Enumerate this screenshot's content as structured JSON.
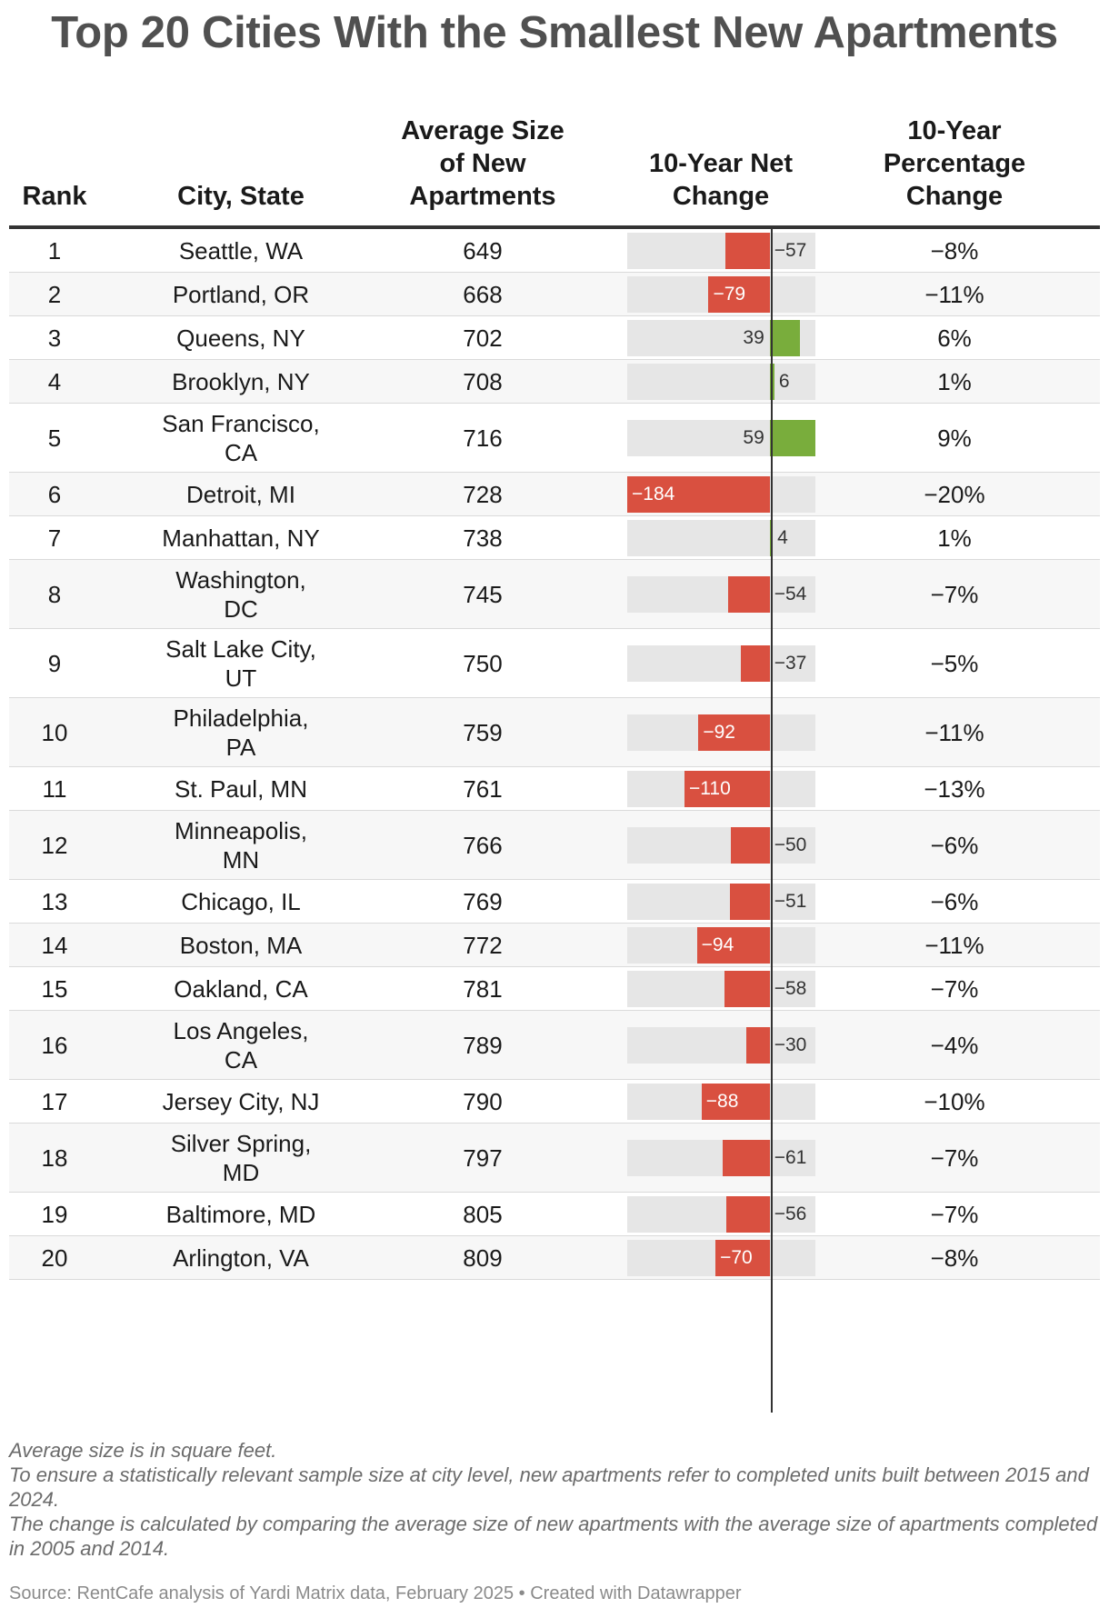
{
  "title": "Top 20 Cities With the Smallest New Apartments",
  "headers": {
    "rank": "Rank",
    "city": "City, State",
    "size_line1": "Average Size",
    "size_line2": "of New",
    "size_line3": "Apartments",
    "net_line1": "10-Year Net",
    "net_line2": "Change",
    "pct_line1": "10-Year",
    "pct_line2": "Percentage",
    "pct_line3": "Change"
  },
  "chart_data": {
    "type": "table",
    "domain_min": -184,
    "domain_max": 59,
    "columns": [
      "Rank",
      "City, State",
      "Average Size of New Apartments",
      "10-Year Net Change",
      "10-Year Percentage Change"
    ],
    "rows": [
      {
        "rank": "1",
        "city": [
          "Seattle, WA"
        ],
        "size": "649",
        "net": -57,
        "net_label": "−57",
        "pct": "−8%"
      },
      {
        "rank": "2",
        "city": [
          "Portland, OR"
        ],
        "size": "668",
        "net": -79,
        "net_label": "−79",
        "pct": "−11%"
      },
      {
        "rank": "3",
        "city": [
          "Queens, NY"
        ],
        "size": "702",
        "net": 39,
        "net_label": "39",
        "pct": "6%"
      },
      {
        "rank": "4",
        "city": [
          "Brooklyn, NY"
        ],
        "size": "708",
        "net": 6,
        "net_label": "6",
        "pct": "1%"
      },
      {
        "rank": "5",
        "city": [
          "San Francisco,",
          "CA"
        ],
        "size": "716",
        "net": 59,
        "net_label": "59",
        "pct": "9%"
      },
      {
        "rank": "6",
        "city": [
          "Detroit, MI"
        ],
        "size": "728",
        "net": -184,
        "net_label": "−184",
        "pct": "−20%"
      },
      {
        "rank": "7",
        "city": [
          "Manhattan, NY"
        ],
        "size": "738",
        "net": 4,
        "net_label": "4",
        "pct": "1%"
      },
      {
        "rank": "8",
        "city": [
          "Washington,",
          "DC"
        ],
        "size": "745",
        "net": -54,
        "net_label": "−54",
        "pct": "−7%"
      },
      {
        "rank": "9",
        "city": [
          "Salt Lake City,",
          "UT"
        ],
        "size": "750",
        "net": -37,
        "net_label": "−37",
        "pct": "−5%"
      },
      {
        "rank": "10",
        "city": [
          "Philadelphia,",
          "PA"
        ],
        "size": "759",
        "net": -92,
        "net_label": "−92",
        "pct": "−11%"
      },
      {
        "rank": "11",
        "city": [
          "St. Paul, MN"
        ],
        "size": "761",
        "net": -110,
        "net_label": "−110",
        "pct": "−13%"
      },
      {
        "rank": "12",
        "city": [
          "Minneapolis,",
          "MN"
        ],
        "size": "766",
        "net": -50,
        "net_label": "−50",
        "pct": "−6%"
      },
      {
        "rank": "13",
        "city": [
          "Chicago, IL"
        ],
        "size": "769",
        "net": -51,
        "net_label": "−51",
        "pct": "−6%"
      },
      {
        "rank": "14",
        "city": [
          "Boston, MA"
        ],
        "size": "772",
        "net": -94,
        "net_label": "−94",
        "pct": "−11%"
      },
      {
        "rank": "15",
        "city": [
          "Oakland, CA"
        ],
        "size": "781",
        "net": -58,
        "net_label": "−58",
        "pct": "−7%"
      },
      {
        "rank": "16",
        "city": [
          "Los Angeles,",
          "CA"
        ],
        "size": "789",
        "net": -30,
        "net_label": "−30",
        "pct": "−4%"
      },
      {
        "rank": "17",
        "city": [
          "Jersey City, NJ"
        ],
        "size": "790",
        "net": -88,
        "net_label": "−88",
        "pct": "−10%"
      },
      {
        "rank": "18",
        "city": [
          "Silver Spring,",
          "MD"
        ],
        "size": "797",
        "net": -61,
        "net_label": "−61",
        "pct": "−7%"
      },
      {
        "rank": "19",
        "city": [
          "Baltimore, MD"
        ],
        "size": "805",
        "net": -56,
        "net_label": "−56",
        "pct": "−7%"
      },
      {
        "rank": "20",
        "city": [
          "Arlington, VA"
        ],
        "size": "809",
        "net": -70,
        "net_label": "−70",
        "pct": "−8%"
      }
    ]
  },
  "notes": {
    "line1": "Average size is in square feet.",
    "line2": "To ensure a statistically relevant sample size at city level, new apartments refer to completed units built between 2015 and 2024.",
    "line3": "The change is calculated by comparing the average size of new apartments with the average size of apartments completed in 2005 and 2014."
  },
  "source": "Source: RentCafe analysis of Yardi Matrix data, February 2025 • Created with Datawrapper",
  "colors": {
    "negative": "#d95040",
    "positive": "#79ad3c",
    "track": "#e6e6e6",
    "row_alt": "#f7f7f7",
    "title": "#505050"
  }
}
